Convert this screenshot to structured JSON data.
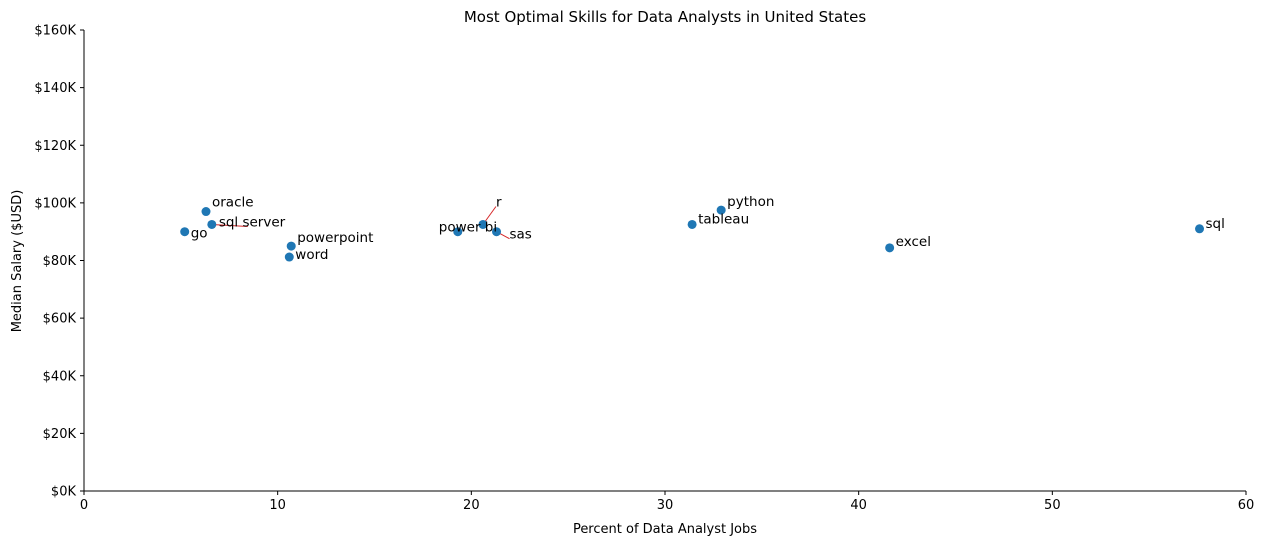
{
  "chart_data": {
    "type": "scatter",
    "title": "Most Optimal Skills for Data Analysts in United States",
    "xlabel": "Percent of Data Analyst Jobs",
    "ylabel": "Median Salary ($USD)",
    "xlim": [
      0,
      60
    ],
    "ylim": [
      0,
      160000
    ],
    "x_ticks": [
      0,
      10,
      20,
      30,
      40,
      50,
      60
    ],
    "x_tick_labels": [
      "0",
      "10",
      "20",
      "30",
      "40",
      "50",
      "60"
    ],
    "y_ticks": [
      0,
      20000,
      40000,
      60000,
      80000,
      100000,
      120000,
      140000,
      160000
    ],
    "y_tick_labels": [
      "$0K",
      "$20K",
      "$40K",
      "$60K",
      "$80K",
      "$100K",
      "$120K",
      "$140K",
      "$160K"
    ],
    "grid": false,
    "marker_color": "#1f77b4",
    "connector_color": "#d62728",
    "points": [
      {
        "label": "sql",
        "x": 57.6,
        "y": 91000
      },
      {
        "label": "excel",
        "x": 41.6,
        "y": 84400
      },
      {
        "label": "python",
        "x": 32.9,
        "y": 97500
      },
      {
        "label": "tableau",
        "x": 31.4,
        "y": 92500
      },
      {
        "label": "sas",
        "x": 21.3,
        "y": 90000
      },
      {
        "label": "r",
        "x": 20.6,
        "y": 92500
      },
      {
        "label": "power bi",
        "x": 19.3,
        "y": 90000
      },
      {
        "label": "powerpoint",
        "x": 10.7,
        "y": 85000
      },
      {
        "label": "word",
        "x": 10.6,
        "y": 81200
      },
      {
        "label": "sql server",
        "x": 6.6,
        "y": 92500
      },
      {
        "label": "oracle",
        "x": 6.3,
        "y": 97000
      },
      {
        "label": "go",
        "x": 5.2,
        "y": 90000
      }
    ]
  }
}
